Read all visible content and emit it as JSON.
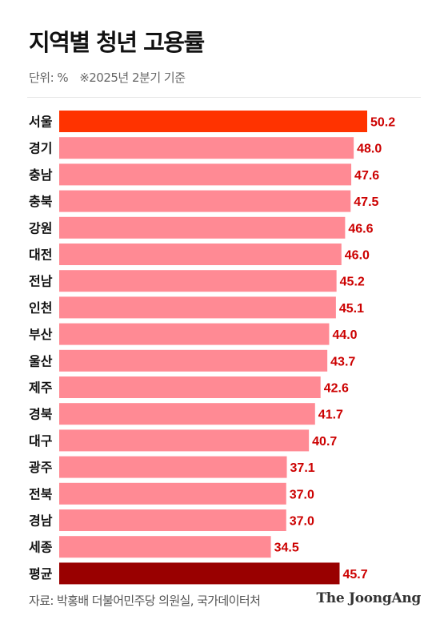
{
  "header": {
    "title": "지역별 청년 고용률",
    "unit": "단위: %",
    "note": "※2025년 2분기 기준"
  },
  "footer": {
    "source": "자료: 박홍배 더불어민주당 의원실, 국가데이터처",
    "logo": "The JoongAng"
  },
  "colors": {
    "highlight": "#ff3300",
    "bar": "#ff8a94",
    "average": "#990000",
    "value_label": "#cc0000",
    "category_label": "#111111"
  },
  "chart_data": {
    "type": "bar",
    "orientation": "horizontal",
    "title": "지역별 청년 고용률",
    "xlim": [
      0,
      50.2
    ],
    "grid": false,
    "legend": "none",
    "categories": [
      "서울",
      "경기",
      "충남",
      "충북",
      "강원",
      "대전",
      "전남",
      "인천",
      "부산",
      "울산",
      "제주",
      "경북",
      "대구",
      "광주",
      "전북",
      "경남",
      "세종",
      "평균"
    ],
    "values": [
      50.2,
      48.0,
      47.6,
      47.5,
      46.6,
      46.0,
      45.2,
      45.1,
      44.0,
      43.7,
      42.6,
      41.7,
      40.7,
      37.1,
      37.0,
      37.0,
      34.5,
      45.7
    ],
    "value_labels": [
      "50.2",
      "48.0",
      "47.6",
      "47.5",
      "46.6",
      "46.0",
      "45.2",
      "45.1",
      "44.0",
      "43.7",
      "42.6",
      "41.7",
      "40.7",
      "37.1",
      "37.0",
      "37.0",
      "34.5",
      "45.7"
    ],
    "highlight": "서울",
    "average": "평균"
  }
}
